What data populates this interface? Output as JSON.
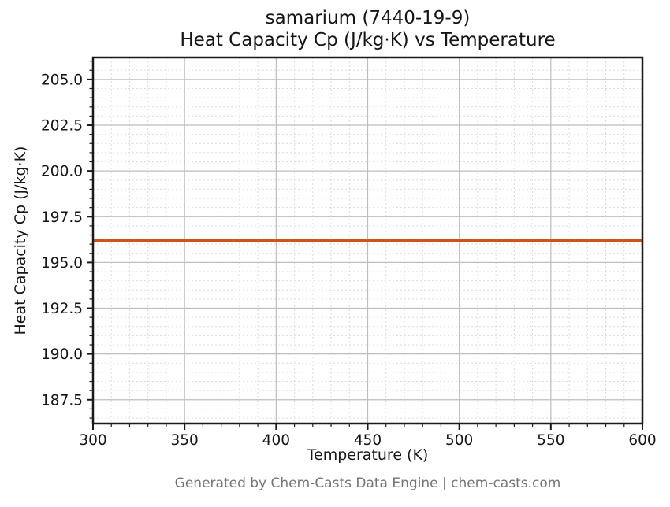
{
  "title": {
    "line1": "samarium (7440-19-9)",
    "line2": "Heat Capacity Cp (J/kg·K) vs Temperature"
  },
  "footer": {
    "text": "Generated by Chem-Casts Data Engine | chem-casts.com",
    "color": "#757575"
  },
  "chart_data": {
    "type": "line",
    "title": "samarium (7440-19-9)\nHeat Capacity Cp (J/kg·K) vs Temperature",
    "xlabel": "Temperature (K)",
    "ylabel": "Heat Capacity Cp (J/kg·K)",
    "series": [
      {
        "name": "Heat Capacity Cp",
        "x": [
          300,
          600
        ],
        "y": [
          196.2,
          196.2
        ],
        "color": "#d2521c",
        "linewidth": 4.5
      }
    ],
    "xlim": [
      300,
      600
    ],
    "ylim": [
      186.2,
      206.2
    ],
    "x_major_ticks": [
      300,
      350,
      400,
      450,
      500,
      550,
      600
    ],
    "x_tick_labels": [
      "300",
      "350",
      "400",
      "450",
      "500",
      "550",
      "600"
    ],
    "y_major_ticks": [
      187.5,
      190.0,
      192.5,
      195.0,
      197.5,
      200.0,
      202.5,
      205.0
    ],
    "y_tick_labels": [
      "187.5",
      "190.0",
      "192.5",
      "195.0",
      "197.5",
      "200.0",
      "202.5",
      "205.0"
    ],
    "x_minor_step": 10,
    "y_minor_step": 0.5,
    "grid": {
      "major_color": "#bdbdbd",
      "minor_color": "#dcdcdc",
      "minor_dash": "2 3"
    },
    "axes": {
      "spine_color": "#1a1a1a",
      "tick_color": "#1a1a1a",
      "background": "#ffffff"
    },
    "legend": "none"
  }
}
